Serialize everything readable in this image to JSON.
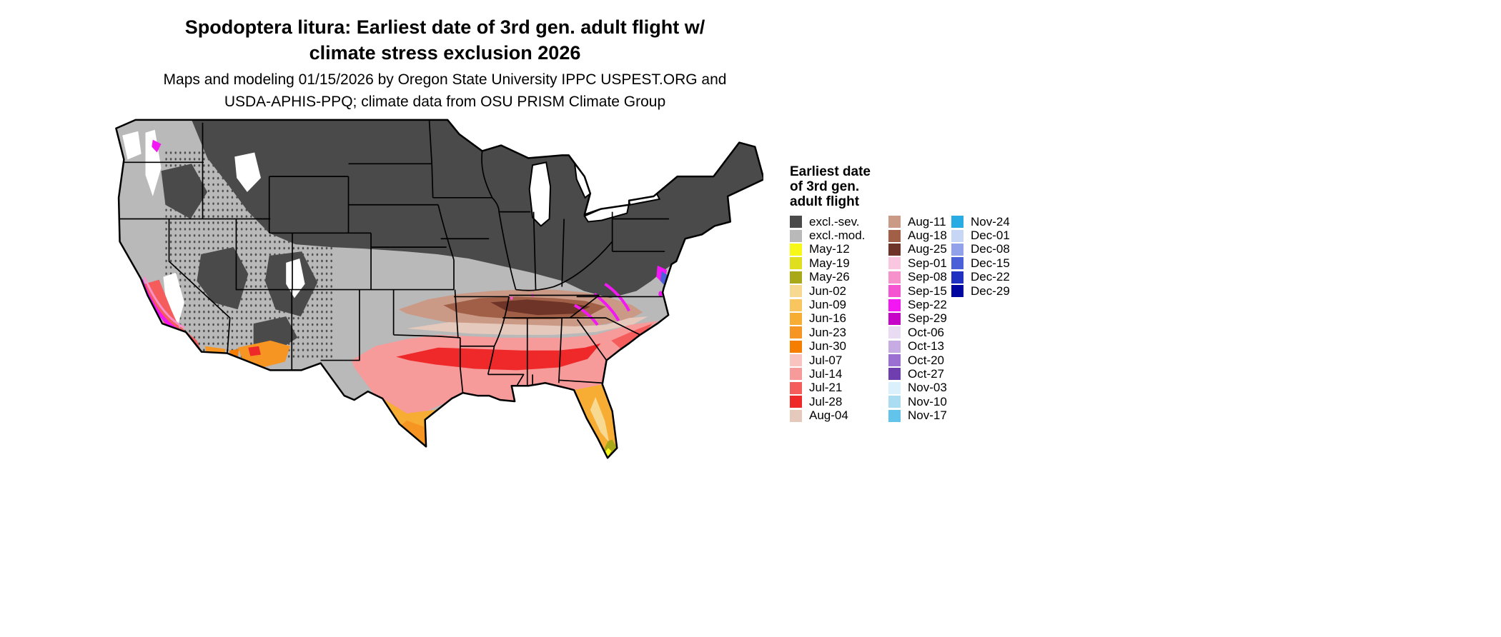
{
  "title": {
    "line1": "Spodoptera litura: Earliest date of 3rd gen. adult flight w/",
    "line2": "climate stress exclusion 2026"
  },
  "subtitle": {
    "line1": "Maps and modeling 01/15/2026 by Oregon State University IPPC USPEST.ORG and",
    "line2": "USDA-APHIS-PPQ; climate data from OSU PRISM Climate Group"
  },
  "legend": {
    "title_lines": [
      "Earliest date",
      "of 3rd gen.",
      "adult flight"
    ],
    "columns": [
      {
        "entries": [
          {
            "key": "excl_sev",
            "label": "excl.-sev.",
            "color": "#4a4a4a"
          },
          {
            "key": "excl_mod",
            "label": "excl.-mod.",
            "color": "#b9b9b9"
          },
          {
            "key": "may_12",
            "label": "May-12",
            "color": "#f8f818"
          },
          {
            "key": "may_19",
            "label": "May-19",
            "color": "#dfdf20"
          },
          {
            "key": "may_26",
            "label": "May-26",
            "color": "#a8a818"
          },
          {
            "key": "jun_02",
            "label": "Jun-02",
            "color": "#f8d992"
          },
          {
            "key": "jun_09",
            "label": "Jun-09",
            "color": "#f8c55e"
          },
          {
            "key": "jun_16",
            "label": "Jun-16",
            "color": "#f7ad33"
          },
          {
            "key": "jun_23",
            "label": "Jun-23",
            "color": "#f79522"
          },
          {
            "key": "jun_30",
            "label": "Jun-30",
            "color": "#f57d00"
          },
          {
            "key": "jul_07",
            "label": "Jul-07",
            "color": "#f9c4c0"
          },
          {
            "key": "jul_14",
            "label": "Jul-14",
            "color": "#f79a9a"
          },
          {
            "key": "jul_21",
            "label": "Jul-21",
            "color": "#f55c5c"
          },
          {
            "key": "jul_28",
            "label": "Jul-28",
            "color": "#ef2929"
          },
          {
            "key": "aug_04",
            "label": "Aug-04",
            "color": "#e5c9bc"
          }
        ]
      },
      {
        "entries": [
          {
            "key": "aug_11",
            "label": "Aug-11",
            "color": "#cb9a86"
          },
          {
            "key": "aug_18",
            "label": "Aug-18",
            "color": "#a05f46"
          },
          {
            "key": "aug_25",
            "label": "Aug-25",
            "color": "#6f3428"
          },
          {
            "key": "sep_01",
            "label": "Sep-01",
            "color": "#f9c7e0"
          },
          {
            "key": "sep_08",
            "label": "Sep-08",
            "color": "#f791cb"
          },
          {
            "key": "sep_15",
            "label": "Sep-15",
            "color": "#f655d2"
          },
          {
            "key": "sep_22",
            "label": "Sep-22",
            "color": "#f318f3"
          },
          {
            "key": "sep_29",
            "label": "Sep-29",
            "color": "#c803c8"
          },
          {
            "key": "oct_06",
            "label": "Oct-06",
            "color": "#e9dcf2"
          },
          {
            "key": "oct_13",
            "label": "Oct-13",
            "color": "#c7abe3"
          },
          {
            "key": "oct_20",
            "label": "Oct-20",
            "color": "#9b70d2"
          },
          {
            "key": "oct_27",
            "label": "Oct-27",
            "color": "#6f3fb0"
          },
          {
            "key": "nov_03",
            "label": "Nov-03",
            "color": "#daf1fb"
          },
          {
            "key": "nov_10",
            "label": "Nov-10",
            "color": "#abddf2"
          },
          {
            "key": "nov_17",
            "label": "Nov-17",
            "color": "#62c4ea"
          }
        ]
      },
      {
        "entries": [
          {
            "key": "nov_24",
            "label": "Nov-24",
            "color": "#29abe3"
          },
          {
            "key": "dec_01",
            "label": "Dec-01",
            "color": "#c6d6f4"
          },
          {
            "key": "dec_08",
            "label": "Dec-08",
            "color": "#91a2ea"
          },
          {
            "key": "dec_15",
            "label": "Dec-15",
            "color": "#4a60d8"
          },
          {
            "key": "dec_22",
            "label": "Dec-22",
            "color": "#2030c0"
          },
          {
            "key": "dec_29",
            "label": "Dec-29",
            "color": "#0106a0"
          }
        ]
      }
    ]
  },
  "map": {
    "region": "Contiguous United States",
    "background": "#ffffff",
    "outline_color": "#000000"
  }
}
